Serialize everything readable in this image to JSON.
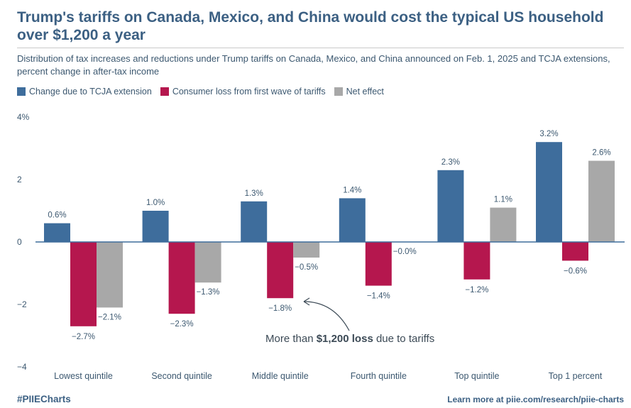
{
  "title": "Trump's tariffs on Canada, Mexico, and China would cost the typical US household over $1,200 a year",
  "subtitle": "Distribution of tax increases and reductions under Trump tariffs on Canada, Mexico, and China announced on Feb. 1, 2025 and TCJA extensions, percent change in after-tax income",
  "annotation": {
    "prefix": "More than ",
    "bold": "$1,200 loss",
    "suffix": " due to tariffs"
  },
  "footer": {
    "hashtag": "#PIIECharts",
    "link": "Learn more at piie.com/research/piie-charts"
  },
  "chart_data": {
    "type": "bar",
    "categories": [
      "Lowest quintile",
      "Second quintile",
      "Middle quintile",
      "Fourth quintile",
      "Top quintile",
      "Top 1 percent"
    ],
    "series": [
      {
        "name": "Change due to TCJA extension",
        "color": "#3e6d9c",
        "values": [
          0.6,
          1.0,
          1.3,
          1.4,
          2.3,
          3.2
        ],
        "labels": [
          "0.6%",
          "1.0%",
          "1.3%",
          "1.4%",
          "2.3%",
          "3.2%"
        ]
      },
      {
        "name": "Consumer loss from first wave of tariffs",
        "color": "#b5174e",
        "values": [
          -2.7,
          -2.3,
          -1.8,
          -1.4,
          -1.2,
          -0.6
        ],
        "labels": [
          "−2.7%",
          "−2.3%",
          "−1.8%",
          "−1.4%",
          "−1.2%",
          "−0.6%"
        ]
      },
      {
        "name": "Net effect",
        "color": "#a8a8a8",
        "values": [
          -2.1,
          -1.3,
          -0.5,
          0.0,
          1.1,
          2.6
        ],
        "labels": [
          "−2.1%",
          "−1.3%",
          "−0.5%",
          "−0.0%",
          "1.1%",
          "2.6%"
        ]
      }
    ],
    "ylim": [
      -4,
      4
    ],
    "yticks": [
      4,
      2,
      0,
      -2,
      -4
    ],
    "ytick_labels": [
      "4%",
      "2",
      "0",
      "−2",
      "−4"
    ],
    "grid": false,
    "legend": "top-left"
  }
}
